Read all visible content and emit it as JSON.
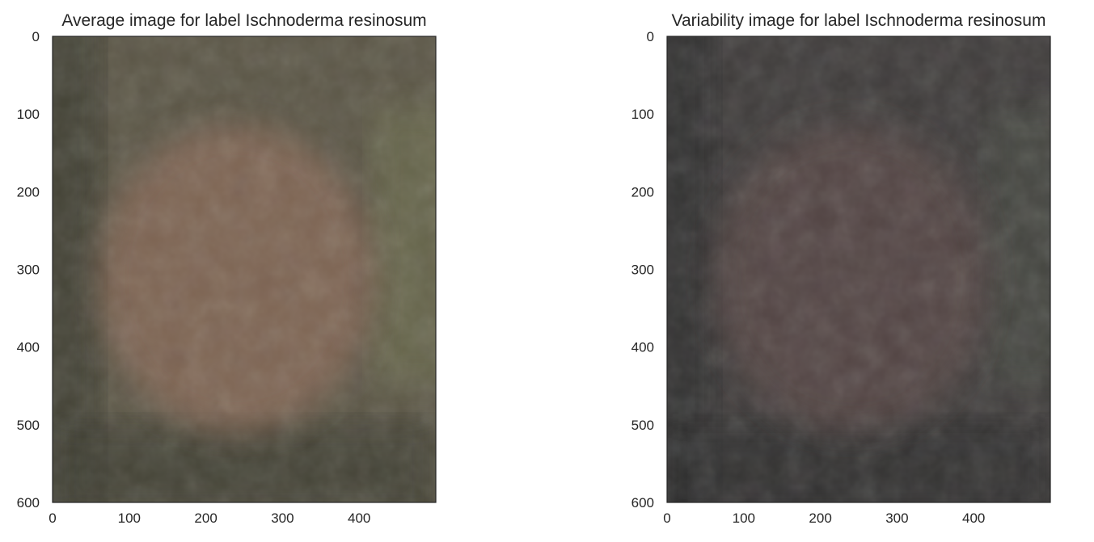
{
  "chart_data": [
    {
      "type": "image",
      "title": "Average image for label Ischnoderma resinosum",
      "xlabel": "",
      "ylabel": "",
      "xlim": [
        0,
        500
      ],
      "ylim": [
        600,
        0
      ],
      "xticks": [
        0,
        100,
        200,
        300,
        400
      ],
      "yticks": [
        0,
        100,
        200,
        300,
        400,
        500,
        600
      ],
      "grid": false,
      "palette": {
        "base": "#5b5646",
        "center": "#8a6a58",
        "edge_dark": "#3e3c31",
        "edge_tint": "#6e7050"
      }
    },
    {
      "type": "image",
      "title": "Variability image for label Ischnoderma resinosum",
      "xlabel": "",
      "ylabel": "",
      "xlim": [
        0,
        500
      ],
      "ylim": [
        600,
        0
      ],
      "xticks": [
        0,
        100,
        200,
        300,
        400
      ],
      "yticks": [
        0,
        100,
        200,
        300,
        400,
        500,
        600
      ],
      "grid": false,
      "palette": {
        "base": "#3f3c3b",
        "center": "#5a4a46",
        "edge_dark": "#2e2d2e",
        "edge_tint": "#4a4d44"
      }
    }
  ]
}
